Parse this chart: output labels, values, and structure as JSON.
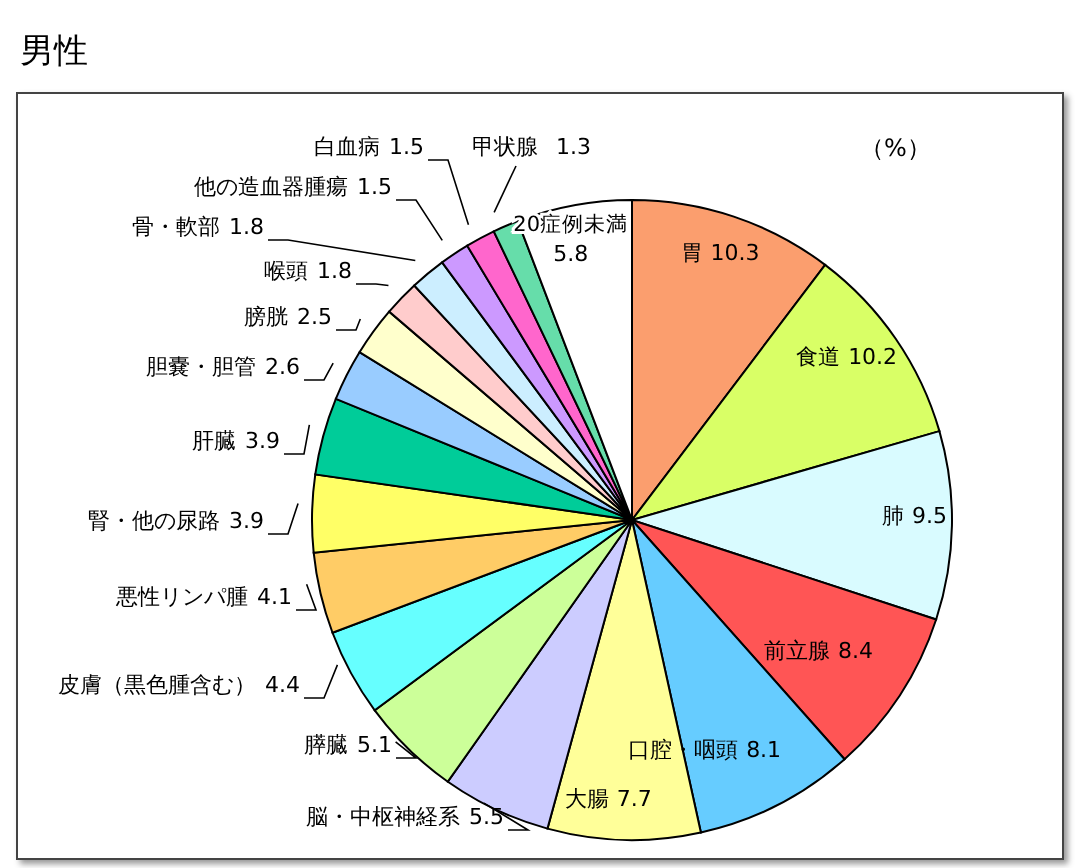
{
  "chart_data": {
    "type": "pie",
    "title": "男性",
    "annotations": [
      "（%）"
    ],
    "data_labels": true,
    "categories": [
      "胃",
      "食道",
      "肺",
      "前立腺",
      "口腔・咽頭",
      "大腸",
      "脳・中枢神経系",
      "膵臓",
      "皮膚（黒色腫含む）",
      "悪性リンパ腫",
      "腎・他の尿路",
      "肝臓",
      "胆嚢・胆管",
      "膀胱",
      "喉頭",
      "骨・軟部",
      "他の造血器腫瘍",
      "白血病",
      "甲状腺",
      "20症例未満"
    ],
    "values": [
      10.3,
      10.2,
      9.5,
      8.4,
      8.1,
      7.7,
      5.5,
      5.1,
      4.4,
      4.1,
      3.9,
      3.9,
      2.6,
      2.5,
      1.8,
      1.8,
      1.5,
      1.5,
      1.3,
      5.8
    ],
    "colors": [
      "#fb9e6e",
      "#d9ff66",
      "#d9fbff",
      "#ff5555",
      "#66ccff",
      "#ffff99",
      "#ccccff",
      "#ccff99",
      "#66ffff",
      "#ffcc66",
      "#ffff66",
      "#00cc99",
      "#99ccff",
      "#ffffcc",
      "#ffcccc",
      "#cceeff",
      "#cc99ff",
      "#ff66cc",
      "#66ddaa",
      "#ffffff"
    ]
  }
}
